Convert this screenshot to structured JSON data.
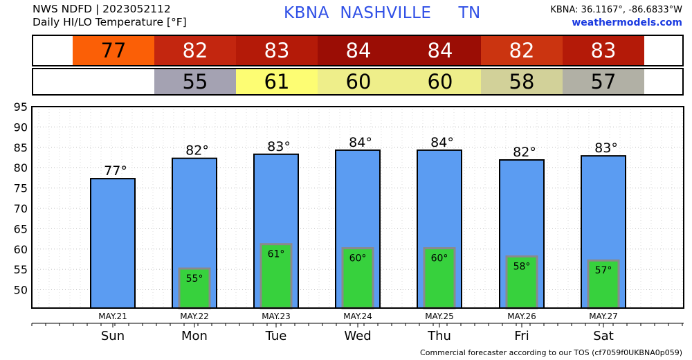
{
  "header": {
    "line1": "NWS NDFD | 2023052112",
    "line2": "Daily HI/LO Temperature [°F]",
    "station_title": "KBNA  NASHVILLE     TN",
    "coords": "KBNA: 36.1167°, -86.6833°W",
    "site": "weathermodels.com"
  },
  "hi_strip": [
    {
      "value": "77",
      "color": "#fb5f06"
    },
    {
      "value": "82",
      "color": "#c3260f"
    },
    {
      "value": "83",
      "color": "#b41a08"
    },
    {
      "value": "84",
      "color": "#9b0d05"
    },
    {
      "value": "84",
      "color": "#9b0d05"
    },
    {
      "value": "82",
      "color": "#cb3410"
    },
    {
      "value": "83",
      "color": "#b41a08"
    }
  ],
  "lo_strip": [
    {
      "value": "",
      "color": "#ffffff"
    },
    {
      "value": "55",
      "color": "#a4a2b2"
    },
    {
      "value": "61",
      "color": "#fdfd73"
    },
    {
      "value": "60",
      "color": "#eeee8a"
    },
    {
      "value": "60",
      "color": "#eeee8a"
    },
    {
      "value": "58",
      "color": "#d2d199"
    },
    {
      "value": "57",
      "color": "#b1b0a5"
    }
  ],
  "chart_data": {
    "type": "bar",
    "categories": [
      "Sun",
      "Mon",
      "Tue",
      "Wed",
      "Thu",
      "Fri",
      "Sat"
    ],
    "dates": [
      "MAY.21",
      "MAY.22",
      "MAY.23",
      "MAY.24",
      "MAY.25",
      "MAY.26",
      "MAY.27"
    ],
    "series": [
      {
        "values": [
          77.3,
          82.3,
          83.3,
          84.3,
          84.3,
          81.9,
          82.9
        ],
        "color": "#5b9cf2"
      },
      {
        "values": [
          null,
          55.2,
          61.2,
          60.2,
          60.2,
          58.2,
          57.2
        ],
        "color": "#37d13d"
      }
    ],
    "hi_labels": [
      "77°",
      "82°",
      "83°",
      "84°",
      "84°",
      "82°",
      "83°"
    ],
    "lo_labels": [
      "",
      "55°",
      "61°",
      "60°",
      "60°",
      "58°",
      "57°"
    ],
    "yticks": [
      50,
      55,
      60,
      65,
      70,
      75,
      80,
      85,
      90,
      95
    ],
    "ylim": [
      45.5,
      95
    ],
    "grid": true
  },
  "footer": "Commercial forecaster according to our TOS (cf7059f0UKBNA0p059)"
}
